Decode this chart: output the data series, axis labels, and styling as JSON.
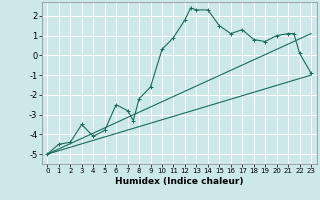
{
  "title": "",
  "xlabel": "Humidex (Indice chaleur)",
  "bg_color": "#cce8e8",
  "grid_color": "#b0d0d0",
  "line_color": "#1a6b5a",
  "xlim": [
    -0.5,
    23.5
  ],
  "ylim": [
    -5.5,
    2.7
  ],
  "xticks": [
    0,
    1,
    2,
    3,
    4,
    5,
    6,
    7,
    8,
    9,
    10,
    11,
    12,
    13,
    14,
    15,
    16,
    17,
    18,
    19,
    20,
    21,
    22,
    23
  ],
  "yticks": [
    -5,
    -4,
    -3,
    -2,
    -1,
    0,
    1,
    2
  ],
  "curve1_x": [
    0,
    1,
    2,
    3,
    4,
    5,
    6,
    7,
    7.5,
    8,
    9,
    10,
    11,
    12,
    12.5,
    13,
    14,
    15,
    16,
    17,
    18,
    19,
    20,
    21,
    21.5,
    22,
    23
  ],
  "curve1_y": [
    -5.0,
    -4.5,
    -4.4,
    -3.5,
    -4.1,
    -3.8,
    -2.5,
    -2.8,
    -3.3,
    -2.2,
    -1.6,
    0.3,
    0.9,
    1.8,
    2.4,
    2.3,
    2.3,
    1.5,
    1.1,
    1.3,
    0.8,
    0.7,
    1.0,
    1.1,
    1.1,
    0.1,
    -0.9
  ],
  "curve2_x": [
    0,
    23
  ],
  "curve2_y": [
    -5.0,
    -1.0
  ],
  "curve3_x": [
    0,
    23
  ],
  "curve3_y": [
    -5.0,
    1.1
  ]
}
